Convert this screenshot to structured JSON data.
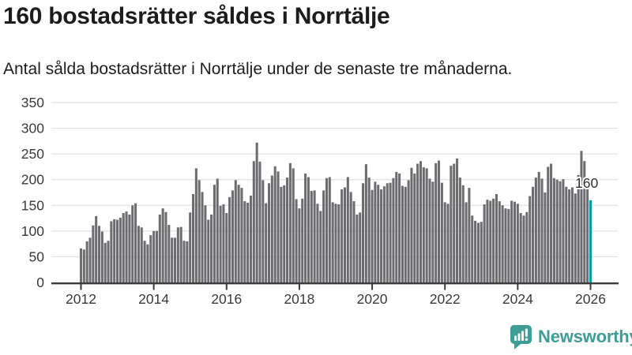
{
  "header": {
    "title": "160 bostadsrätter såldes i Norrtälje",
    "subtitle": "Antal sålda bostadsrätter i Norrtälje under de senaste tre månaderna."
  },
  "branding": {
    "name": "Newsworthy",
    "color": "#3E9D96"
  },
  "chart_data": {
    "type": "bar",
    "title": "160 bostadsrätter såldes i Norrtälje",
    "subtitle": "Antal sålda bostadsrätter i Norrtälje under de senaste tre månaderna.",
    "x_start": "2012-01",
    "frequency": "monthly",
    "values": [
      66,
      64,
      80,
      87,
      111,
      129,
      110,
      99,
      77,
      81,
      119,
      123,
      122,
      126,
      135,
      138,
      132,
      150,
      154,
      110,
      107,
      81,
      74,
      92,
      100,
      100,
      132,
      144,
      137,
      112,
      87,
      87,
      107,
      108,
      81,
      80,
      136,
      172,
      222,
      199,
      176,
      150,
      122,
      132,
      190,
      202,
      149,
      152,
      135,
      166,
      179,
      199,
      190,
      184,
      158,
      155,
      169,
      236,
      272,
      235,
      199,
      154,
      193,
      208,
      226,
      216,
      186,
      189,
      204,
      232,
      222,
      162,
      144,
      163,
      212,
      205,
      178,
      179,
      153,
      139,
      179,
      203,
      205,
      156,
      153,
      152,
      181,
      185,
      205,
      176,
      158,
      132,
      136,
      193,
      230,
      204,
      180,
      196,
      190,
      181,
      187,
      193,
      194,
      203,
      215,
      212,
      188,
      186,
      199,
      223,
      212,
      231,
      236,
      224,
      222,
      202,
      196,
      232,
      237,
      194,
      156,
      153,
      227,
      231,
      241,
      204,
      189,
      156,
      184,
      130,
      120,
      116,
      118,
      152,
      161,
      159,
      163,
      172,
      158,
      150,
      144,
      143,
      159,
      157,
      153,
      135,
      130,
      137,
      168,
      186,
      204,
      215,
      202,
      175,
      225,
      231,
      203,
      200,
      197,
      201,
      186,
      181,
      185,
      173,
      209,
      256,
      236,
      190,
      160
    ],
    "highlight": {
      "index": 168,
      "value": 160,
      "label": "160",
      "color": "#00A39B"
    },
    "bar_color": "#6D6D71",
    "x_tick_years": [
      2012,
      2014,
      2016,
      2018,
      2020,
      2022,
      2024,
      2026
    ],
    "y_ticks": [
      0,
      50,
      100,
      150,
      200,
      250,
      300,
      350
    ],
    "ylim": [
      0,
      350
    ],
    "grid": true,
    "legend": false,
    "grid_color": "#E3E3E3",
    "axis_color": "#3A3A3A"
  }
}
